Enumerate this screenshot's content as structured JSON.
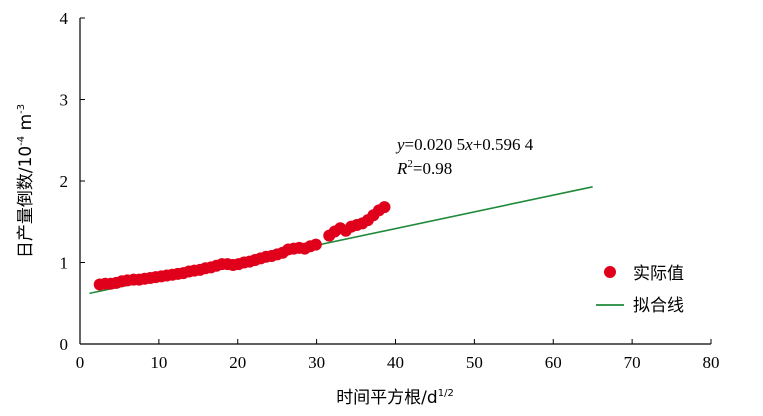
{
  "chart_data": {
    "type": "scatter",
    "x_label_main": "时间平方根/d",
    "x_label_sup": "1/2",
    "y_label_main": "日产量倒数/10",
    "y_label_sup1": "-4",
    "y_label_mid": " m",
    "y_label_sup2": "-3",
    "xlim": [
      0,
      80
    ],
    "ylim": [
      0,
      4
    ],
    "x_ticks": [
      "0",
      "10",
      "20",
      "30",
      "40",
      "50",
      "60",
      "70",
      "80"
    ],
    "y_ticks": [
      "0",
      "1",
      "2",
      "3",
      "4"
    ],
    "grid": false,
    "legend_position": "right",
    "legend": {
      "actual": "实际值",
      "fit": "拟合线"
    },
    "equation": {
      "line1_y": "y",
      "line1_rest1": "=0.020 5",
      "line1_x": "x",
      "line1_rest2": "+0.596 4",
      "line2_r": "R",
      "line2_sup": "2",
      "line2_rest": "=0.98"
    },
    "fit_line": {
      "slope": 0.0205,
      "intercept": 0.5964,
      "x_range": [
        1.2,
        65
      ]
    },
    "colors": {
      "points": "#e0001b",
      "fit": "#1f8a3a"
    },
    "series": [
      {
        "name": "实际值",
        "points": [
          [
            2.5,
            0.73
          ],
          [
            3.2,
            0.74
          ],
          [
            3.9,
            0.74
          ],
          [
            4.6,
            0.75
          ],
          [
            5.3,
            0.77
          ],
          [
            6.0,
            0.78
          ],
          [
            6.8,
            0.79
          ],
          [
            7.5,
            0.79
          ],
          [
            8.2,
            0.8
          ],
          [
            8.9,
            0.81
          ],
          [
            9.6,
            0.82
          ],
          [
            10.3,
            0.83
          ],
          [
            11.0,
            0.84
          ],
          [
            11.7,
            0.85
          ],
          [
            12.4,
            0.86
          ],
          [
            13.1,
            0.87
          ],
          [
            13.8,
            0.89
          ],
          [
            14.5,
            0.9
          ],
          [
            15.2,
            0.91
          ],
          [
            15.9,
            0.93
          ],
          [
            16.6,
            0.94
          ],
          [
            17.3,
            0.96
          ],
          [
            18.0,
            0.98
          ],
          [
            18.7,
            0.98
          ],
          [
            19.4,
            0.97
          ],
          [
            20.1,
            0.98
          ],
          [
            20.8,
            1.0
          ],
          [
            21.5,
            1.01
          ],
          [
            22.2,
            1.03
          ],
          [
            22.9,
            1.05
          ],
          [
            23.6,
            1.07
          ],
          [
            24.3,
            1.08
          ],
          [
            25.0,
            1.1
          ],
          [
            25.7,
            1.12
          ],
          [
            26.4,
            1.16
          ],
          [
            27.1,
            1.17
          ],
          [
            27.8,
            1.18
          ],
          [
            28.5,
            1.17
          ],
          [
            29.2,
            1.2
          ],
          [
            29.9,
            1.22
          ],
          [
            31.6,
            1.33
          ],
          [
            32.3,
            1.38
          ],
          [
            33.0,
            1.42
          ],
          [
            33.7,
            1.39
          ],
          [
            34.4,
            1.44
          ],
          [
            35.1,
            1.46
          ],
          [
            35.8,
            1.48
          ],
          [
            36.5,
            1.52
          ],
          [
            37.2,
            1.58
          ],
          [
            37.9,
            1.64
          ],
          [
            38.6,
            1.68
          ]
        ]
      }
    ]
  }
}
